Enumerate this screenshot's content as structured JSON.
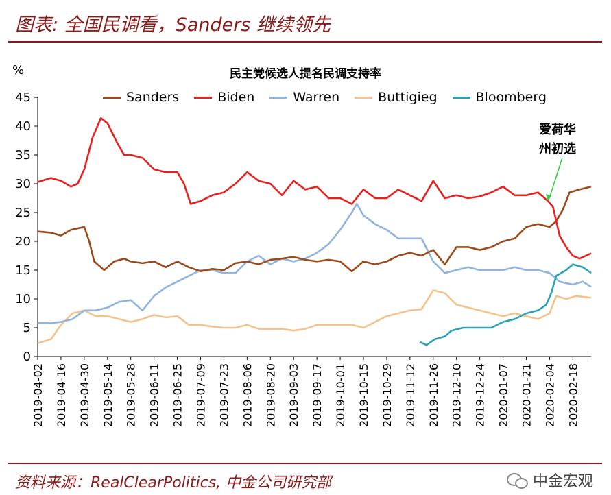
{
  "figure_title": "图表: 全国民调看，Sanders 继续领先",
  "source_text": "资料来源：RealClearPolitics, 中金公司研究部",
  "watermark": "中金宏观",
  "colors": {
    "accent": "#8b1a1a",
    "Sanders": "#9c4a1a",
    "Biden": "#e8201e",
    "Warren": "#8fb4e0",
    "Buttigieg": "#f5c28c",
    "Bloomberg": "#2aa1b7"
  },
  "chart_data": {
    "type": "line",
    "title": "民主党候选人提名民调支持率",
    "ylabel": "%",
    "ylim": [
      0,
      45
    ],
    "yticks": [
      0,
      5,
      10,
      15,
      20,
      25,
      30,
      35,
      40,
      45
    ],
    "xlim": [
      "2019-04-02",
      "2020-02-29"
    ],
    "xticks": [
      "2019-04-02",
      "2019-04-16",
      "2019-04-30",
      "2019-05-14",
      "2019-05-28",
      "2019-06-11",
      "2019-06-25",
      "2019-07-09",
      "2019-07-23",
      "2019-08-06",
      "2019-08-20",
      "2019-09-03",
      "2019-09-17",
      "2019-10-01",
      "2019-10-15",
      "2019-10-29",
      "2019-11-12",
      "2019-11-26",
      "2019-12-10",
      "2019-12-24",
      "2020-01-07",
      "2020-01-21",
      "2020-02-04",
      "2020-02-18"
    ],
    "legend": "top",
    "annotation": {
      "text_line1": "爱荷华",
      "text_line2": "州初选",
      "x": "2020-02-03",
      "y": 27
    },
    "series": [
      {
        "name": "Sanders",
        "points": [
          [
            "2019-04-02",
            21.7
          ],
          [
            "2019-04-10",
            21.5
          ],
          [
            "2019-04-16",
            21.0
          ],
          [
            "2019-04-22",
            22.0
          ],
          [
            "2019-04-30",
            22.5
          ],
          [
            "2019-05-03",
            20.0
          ],
          [
            "2019-05-06",
            16.5
          ],
          [
            "2019-05-12",
            15.0
          ],
          [
            "2019-05-18",
            16.5
          ],
          [
            "2019-05-24",
            17.0
          ],
          [
            "2019-05-28",
            16.5
          ],
          [
            "2019-06-04",
            16.2
          ],
          [
            "2019-06-11",
            16.5
          ],
          [
            "2019-06-18",
            15.5
          ],
          [
            "2019-06-25",
            16.5
          ],
          [
            "2019-07-02",
            15.5
          ],
          [
            "2019-07-09",
            14.8
          ],
          [
            "2019-07-16",
            15.2
          ],
          [
            "2019-07-23",
            15.0
          ],
          [
            "2019-07-30",
            16.2
          ],
          [
            "2019-08-06",
            16.5
          ],
          [
            "2019-08-13",
            16.0
          ],
          [
            "2019-08-20",
            16.8
          ],
          [
            "2019-08-27",
            17.0
          ],
          [
            "2019-09-03",
            17.3
          ],
          [
            "2019-09-10",
            16.8
          ],
          [
            "2019-09-17",
            16.5
          ],
          [
            "2019-09-24",
            16.8
          ],
          [
            "2019-10-01",
            16.5
          ],
          [
            "2019-10-08",
            14.8
          ],
          [
            "2019-10-15",
            16.5
          ],
          [
            "2019-10-22",
            16.0
          ],
          [
            "2019-10-29",
            16.5
          ],
          [
            "2019-11-05",
            17.5
          ],
          [
            "2019-11-12",
            18.0
          ],
          [
            "2019-11-19",
            17.5
          ],
          [
            "2019-11-26",
            18.5
          ],
          [
            "2019-12-03",
            16.0
          ],
          [
            "2019-12-10",
            19.0
          ],
          [
            "2019-12-17",
            19.0
          ],
          [
            "2019-12-24",
            18.5
          ],
          [
            "2019-12-31",
            19.0
          ],
          [
            "2020-01-07",
            20.0
          ],
          [
            "2020-01-14",
            20.5
          ],
          [
            "2020-01-21",
            22.5
          ],
          [
            "2020-01-28",
            23.0
          ],
          [
            "2020-02-04",
            22.5
          ],
          [
            "2020-02-08",
            23.5
          ],
          [
            "2020-02-12",
            25.5
          ],
          [
            "2020-02-16",
            28.5
          ],
          [
            "2020-02-22",
            29.0
          ],
          [
            "2020-02-29",
            29.5
          ]
        ]
      },
      {
        "name": "Biden",
        "points": [
          [
            "2019-04-02",
            30.3
          ],
          [
            "2019-04-10",
            31.0
          ],
          [
            "2019-04-16",
            30.5
          ],
          [
            "2019-04-22",
            29.5
          ],
          [
            "2019-04-26",
            30.0
          ],
          [
            "2019-04-30",
            32.5
          ],
          [
            "2019-05-05",
            38.0
          ],
          [
            "2019-05-10",
            41.4
          ],
          [
            "2019-05-14",
            40.5
          ],
          [
            "2019-05-20",
            37.0
          ],
          [
            "2019-05-24",
            35.0
          ],
          [
            "2019-05-28",
            35.0
          ],
          [
            "2019-06-04",
            34.5
          ],
          [
            "2019-06-11",
            32.5
          ],
          [
            "2019-06-18",
            32.0
          ],
          [
            "2019-06-25",
            32.0
          ],
          [
            "2019-06-29",
            30.0
          ],
          [
            "2019-07-03",
            26.5
          ],
          [
            "2019-07-09",
            27.0
          ],
          [
            "2019-07-16",
            28.0
          ],
          [
            "2019-07-23",
            28.5
          ],
          [
            "2019-07-30",
            30.0
          ],
          [
            "2019-08-06",
            32.0
          ],
          [
            "2019-08-13",
            30.5
          ],
          [
            "2019-08-20",
            30.0
          ],
          [
            "2019-08-27",
            28.0
          ],
          [
            "2019-09-03",
            30.5
          ],
          [
            "2019-09-10",
            29.0
          ],
          [
            "2019-09-17",
            29.5
          ],
          [
            "2019-09-24",
            27.5
          ],
          [
            "2019-10-01",
            27.5
          ],
          [
            "2019-10-08",
            26.5
          ],
          [
            "2019-10-15",
            29.0
          ],
          [
            "2019-10-22",
            27.5
          ],
          [
            "2019-10-29",
            27.5
          ],
          [
            "2019-11-05",
            29.0
          ],
          [
            "2019-11-12",
            28.0
          ],
          [
            "2019-11-19",
            27.0
          ],
          [
            "2019-11-26",
            30.5
          ],
          [
            "2019-12-03",
            27.5
          ],
          [
            "2019-12-10",
            28.0
          ],
          [
            "2019-12-17",
            27.5
          ],
          [
            "2019-12-24",
            27.8
          ],
          [
            "2019-12-31",
            28.5
          ],
          [
            "2020-01-07",
            29.5
          ],
          [
            "2020-01-14",
            28.0
          ],
          [
            "2020-01-21",
            28.0
          ],
          [
            "2020-01-28",
            28.5
          ],
          [
            "2020-02-03",
            27.0
          ],
          [
            "2020-02-06",
            26.0
          ],
          [
            "2020-02-10",
            21.0
          ],
          [
            "2020-02-14",
            19.0
          ],
          [
            "2020-02-18",
            17.5
          ],
          [
            "2020-02-22",
            17.0
          ],
          [
            "2020-02-29",
            17.9
          ]
        ]
      },
      {
        "name": "Warren",
        "points": [
          [
            "2019-04-02",
            5.8
          ],
          [
            "2019-04-10",
            5.8
          ],
          [
            "2019-04-16",
            6.0
          ],
          [
            "2019-04-23",
            6.5
          ],
          [
            "2019-04-30",
            8.0
          ],
          [
            "2019-05-07",
            8.0
          ],
          [
            "2019-05-14",
            8.5
          ],
          [
            "2019-05-21",
            9.5
          ],
          [
            "2019-05-28",
            9.8
          ],
          [
            "2019-06-04",
            8.0
          ],
          [
            "2019-06-11",
            10.5
          ],
          [
            "2019-06-18",
            12.0
          ],
          [
            "2019-06-25",
            13.0
          ],
          [
            "2019-07-02",
            14.0
          ],
          [
            "2019-07-09",
            15.0
          ],
          [
            "2019-07-16",
            15.0
          ],
          [
            "2019-07-23",
            14.5
          ],
          [
            "2019-07-30",
            14.5
          ],
          [
            "2019-08-06",
            16.5
          ],
          [
            "2019-08-13",
            17.5
          ],
          [
            "2019-08-20",
            16.0
          ],
          [
            "2019-08-27",
            17.0
          ],
          [
            "2019-09-03",
            16.5
          ],
          [
            "2019-09-10",
            17.0
          ],
          [
            "2019-09-17",
            18.0
          ],
          [
            "2019-09-24",
            19.5
          ],
          [
            "2019-10-01",
            22.0
          ],
          [
            "2019-10-08",
            25.0
          ],
          [
            "2019-10-11",
            26.5
          ],
          [
            "2019-10-15",
            24.5
          ],
          [
            "2019-10-22",
            23.0
          ],
          [
            "2019-10-29",
            22.0
          ],
          [
            "2019-11-05",
            20.5
          ],
          [
            "2019-11-12",
            20.5
          ],
          [
            "2019-11-19",
            20.5
          ],
          [
            "2019-11-26",
            16.5
          ],
          [
            "2019-12-03",
            14.5
          ],
          [
            "2019-12-10",
            15.0
          ],
          [
            "2019-12-17",
            15.5
          ],
          [
            "2019-12-24",
            15.0
          ],
          [
            "2019-12-31",
            15.0
          ],
          [
            "2020-01-07",
            15.0
          ],
          [
            "2020-01-14",
            15.5
          ],
          [
            "2020-01-21",
            15.0
          ],
          [
            "2020-01-28",
            15.0
          ],
          [
            "2020-02-04",
            14.5
          ],
          [
            "2020-02-10",
            13.0
          ],
          [
            "2020-02-18",
            12.5
          ],
          [
            "2020-02-24",
            13.0
          ],
          [
            "2020-02-29",
            12.1
          ]
        ]
      },
      {
        "name": "Buttigieg",
        "points": [
          [
            "2019-04-02",
            2.3
          ],
          [
            "2019-04-10",
            3.0
          ],
          [
            "2019-04-16",
            5.5
          ],
          [
            "2019-04-23",
            7.5
          ],
          [
            "2019-04-30",
            8.0
          ],
          [
            "2019-05-07",
            7.0
          ],
          [
            "2019-05-14",
            7.0
          ],
          [
            "2019-05-21",
            6.5
          ],
          [
            "2019-05-28",
            6.0
          ],
          [
            "2019-06-04",
            6.5
          ],
          [
            "2019-06-11",
            7.2
          ],
          [
            "2019-06-18",
            6.8
          ],
          [
            "2019-06-25",
            7.0
          ],
          [
            "2019-07-02",
            5.5
          ],
          [
            "2019-07-09",
            5.5
          ],
          [
            "2019-07-16",
            5.2
          ],
          [
            "2019-07-23",
            5.0
          ],
          [
            "2019-07-30",
            5.0
          ],
          [
            "2019-08-06",
            5.5
          ],
          [
            "2019-08-13",
            4.8
          ],
          [
            "2019-08-20",
            4.8
          ],
          [
            "2019-08-27",
            4.8
          ],
          [
            "2019-09-03",
            4.5
          ],
          [
            "2019-09-10",
            4.8
          ],
          [
            "2019-09-17",
            5.5
          ],
          [
            "2019-09-24",
            5.5
          ],
          [
            "2019-10-01",
            5.5
          ],
          [
            "2019-10-08",
            5.5
          ],
          [
            "2019-10-15",
            5.0
          ],
          [
            "2019-10-22",
            6.0
          ],
          [
            "2019-10-29",
            7.0
          ],
          [
            "2019-11-05",
            7.5
          ],
          [
            "2019-11-12",
            8.0
          ],
          [
            "2019-11-19",
            8.2
          ],
          [
            "2019-11-26",
            11.5
          ],
          [
            "2019-12-03",
            11.0
          ],
          [
            "2019-12-10",
            9.0
          ],
          [
            "2019-12-17",
            8.5
          ],
          [
            "2019-12-24",
            8.0
          ],
          [
            "2019-12-31",
            7.5
          ],
          [
            "2020-01-07",
            7.0
          ],
          [
            "2020-01-14",
            7.5
          ],
          [
            "2020-01-21",
            7.0
          ],
          [
            "2020-01-28",
            6.5
          ],
          [
            "2020-02-04",
            7.5
          ],
          [
            "2020-02-08",
            10.5
          ],
          [
            "2020-02-14",
            10.0
          ],
          [
            "2020-02-20",
            10.5
          ],
          [
            "2020-02-29",
            10.2
          ]
        ]
      },
      {
        "name": "Bloomberg",
        "points": [
          [
            "2019-11-18",
            2.5
          ],
          [
            "2019-11-22",
            2.0
          ],
          [
            "2019-11-27",
            3.0
          ],
          [
            "2019-12-03",
            3.5
          ],
          [
            "2019-12-07",
            4.5
          ],
          [
            "2019-12-14",
            5.0
          ],
          [
            "2019-12-21",
            5.0
          ],
          [
            "2019-12-31",
            5.0
          ],
          [
            "2020-01-07",
            6.0
          ],
          [
            "2020-01-14",
            6.5
          ],
          [
            "2020-01-21",
            7.5
          ],
          [
            "2020-01-28",
            8.0
          ],
          [
            "2020-02-02",
            9.0
          ],
          [
            "2020-02-05",
            11.0
          ],
          [
            "2020-02-08",
            14.0
          ],
          [
            "2020-02-14",
            15.0
          ],
          [
            "2020-02-18",
            16.0
          ],
          [
            "2020-02-24",
            15.5
          ],
          [
            "2020-02-29",
            14.5
          ]
        ]
      }
    ]
  }
}
